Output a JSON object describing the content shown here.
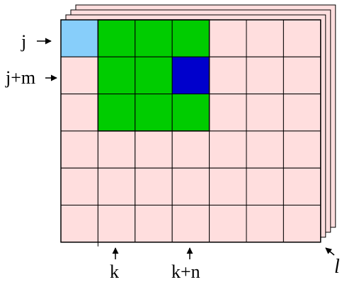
{
  "grid": {
    "rows": 6,
    "cols": 7,
    "layers": 4,
    "highlight_cells": [
      {
        "row": 0,
        "col": 0,
        "color": "light-blue"
      },
      {
        "row": 0,
        "col": 1,
        "color": "green"
      },
      {
        "row": 0,
        "col": 2,
        "color": "green"
      },
      {
        "row": 0,
        "col": 3,
        "color": "green"
      },
      {
        "row": 1,
        "col": 1,
        "color": "green"
      },
      {
        "row": 1,
        "col": 2,
        "color": "green"
      },
      {
        "row": 1,
        "col": 3,
        "color": "dark-blue"
      },
      {
        "row": 2,
        "col": 1,
        "color": "green"
      },
      {
        "row": 2,
        "col": 2,
        "color": "green"
      },
      {
        "row": 2,
        "col": 3,
        "color": "green"
      }
    ]
  },
  "colors": {
    "cell_default": "#FFDEDE",
    "light-blue": "#87CEFA",
    "green": "#00CC00",
    "dark-blue": "#0000CC",
    "grid_line": "#000000"
  },
  "labels": {
    "row_j": "j",
    "row_j_plus_m": "j+m",
    "col_k": "k",
    "col_k_plus_n": "k+n",
    "layer_l": "l"
  }
}
